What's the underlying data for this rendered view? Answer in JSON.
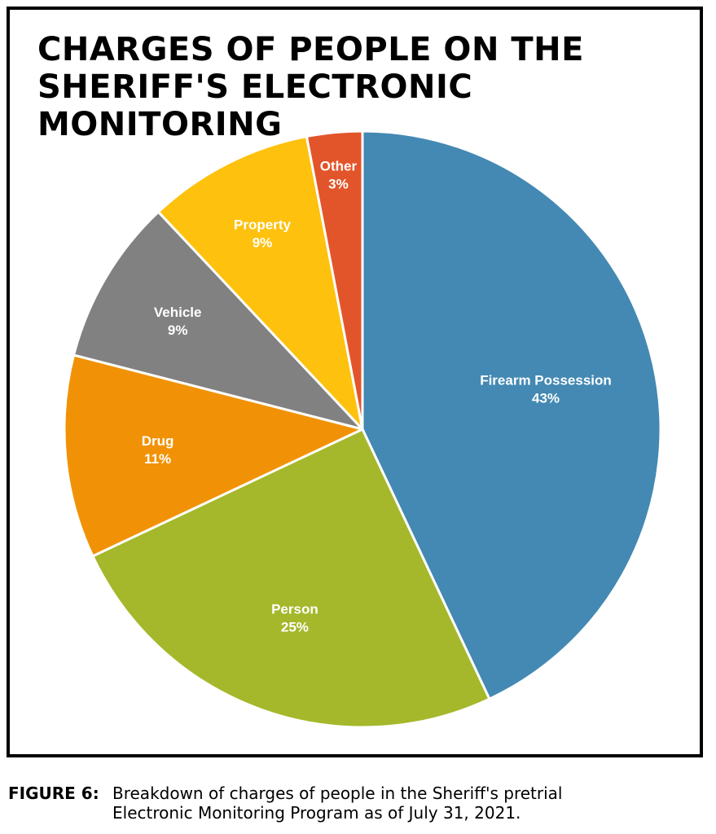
{
  "chart_data": {
    "type": "pie",
    "title_lines": [
      "CHARGES OF PEOPLE ON THE",
      "SHERIFF'S ELECTRONIC MONITORING"
    ],
    "slices": [
      {
        "label": "Firearm Possession",
        "value": 43,
        "value_label": "43%",
        "color": "#4389b3"
      },
      {
        "label": "Person",
        "value": 25,
        "value_label": "25%",
        "color": "#a5b82b"
      },
      {
        "label": "Drug",
        "value": 11,
        "value_label": "11%",
        "color": "#f19206"
      },
      {
        "label": "Vehicle",
        "value": 9,
        "value_label": "9%",
        "color": "#818181"
      },
      {
        "label": "Property",
        "value": 9,
        "value_label": "9%",
        "color": "#fec10e"
      },
      {
        "label": "Other",
        "value": 3,
        "value_label": "3%",
        "color": "#e2552a"
      }
    ],
    "slice_border_color": "#ffffff",
    "start": "12 o'clock",
    "direction": "clockwise"
  },
  "caption": {
    "figure_label": "FIGURE 6:",
    "line1": "Breakdown of charges of people in the Sheriff's pretrial",
    "line2": "Electronic Monitoring Program as of July 31, 2021."
  }
}
